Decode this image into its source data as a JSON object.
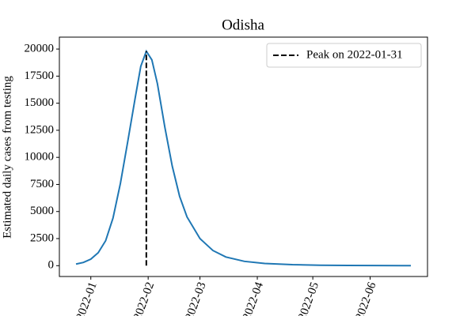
{
  "chart_data": {
    "type": "line",
    "title": "Odisha",
    "y_label": "Estimated daily cases from testing",
    "x": [
      "2021-12-24",
      "2021-12-28",
      "2022-01-01",
      "2022-01-05",
      "2022-01-09",
      "2022-01-13",
      "2022-01-17",
      "2022-01-21",
      "2022-01-25",
      "2022-01-28",
      "2022-01-31",
      "2022-02-03",
      "2022-02-06",
      "2022-02-10",
      "2022-02-14",
      "2022-02-18",
      "2022-02-22",
      "2022-03-01",
      "2022-03-08",
      "2022-03-15",
      "2022-03-25",
      "2022-04-05",
      "2022-04-20",
      "2022-05-05",
      "2022-05-20",
      "2022-06-05",
      "2022-06-23"
    ],
    "values": [
      150,
      300,
      600,
      1200,
      2300,
      4400,
      7600,
      11500,
      15500,
      18400,
      19800,
      19000,
      16800,
      12800,
      9200,
      6400,
      4500,
      2500,
      1400,
      800,
      400,
      200,
      90,
      40,
      20,
      10,
      5
    ],
    "color": "#1f77b4",
    "peak": {
      "x": "2022-01-31",
      "value": 19800,
      "label": "Peak on 2022-01-31",
      "color": "#000000"
    },
    "legend": "upper right",
    "xlim": [
      "2021-12-15",
      "2022-07-02"
    ],
    "xticks": [
      {
        "value": "2022-01-01",
        "label": "2022-01"
      },
      {
        "value": "2022-02-01",
        "label": "2022-02"
      },
      {
        "value": "2022-03-01",
        "label": "2022-03"
      },
      {
        "value": "2022-04-01",
        "label": "2022-04"
      },
      {
        "value": "2022-05-01",
        "label": "2022-05"
      },
      {
        "value": "2022-06-01",
        "label": "2022-06"
      }
    ],
    "ylim": [
      -1000,
      21100
    ],
    "yticks": [
      0,
      2500,
      5000,
      7500,
      10000,
      12500,
      15000,
      17500,
      20000
    ]
  }
}
